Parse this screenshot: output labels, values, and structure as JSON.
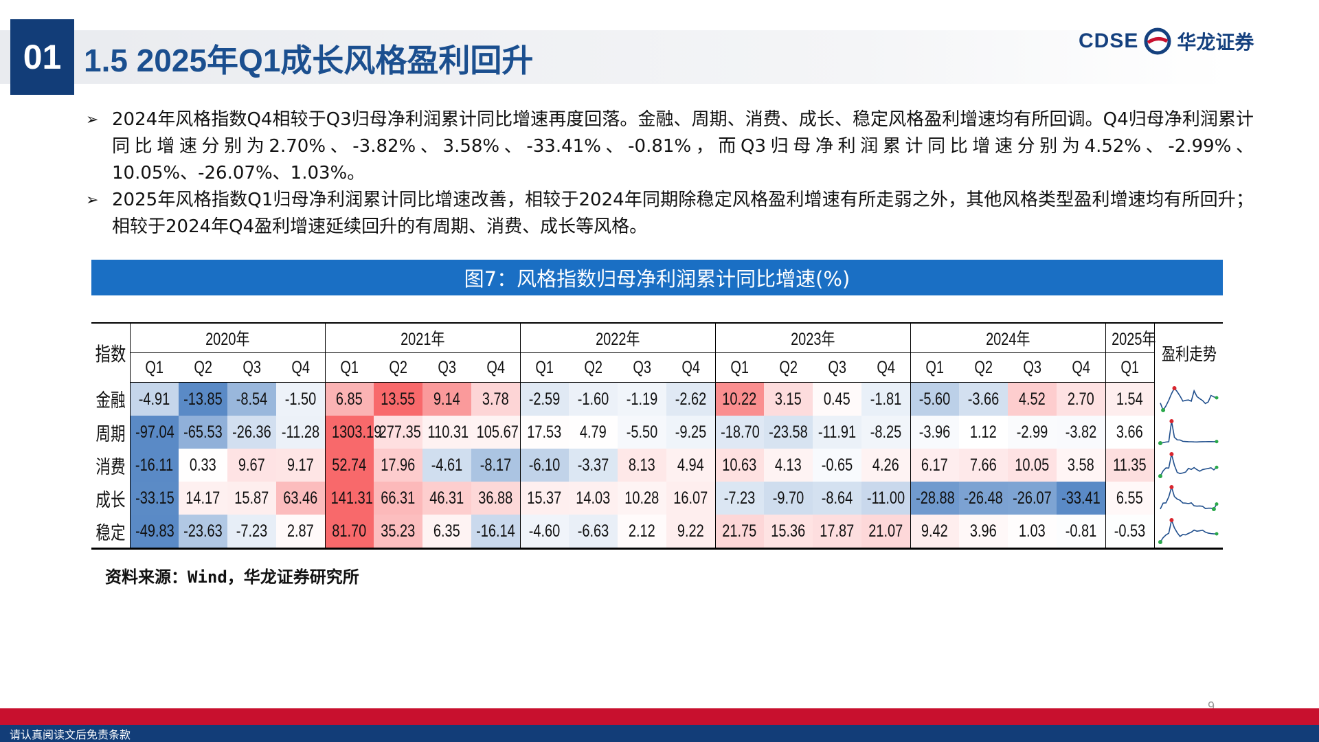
{
  "header": {
    "number": "01",
    "title": "1.5 2025年Q1成长风格盈利回升",
    "logo_en": "CDSE",
    "logo_cn": "华龙证券"
  },
  "bullets": [
    "2024年风格指数Q4相较于Q3归母净利润累计同比增速再度回落。金融、周期、消费、成长、稳定风格盈利增速均有所回调。Q4归母净利润累计同比增速分别为2.70%、-3.82%、3.58%、-33.41%、-0.81%，而Q3归母净利润累计同比增速分别为4.52%、-2.99%、10.05%、-26.07%、1.03%。",
    "2025年风格指数Q1归母净利润累计同比增速改善，相较于2024年同期除稳定风格盈利增速有所走弱之外，其他风格类型盈利增速均有所回升；相较于2024年Q4盈利增速延续回升的有周期、消费、成长等风格。"
  ],
  "figure": {
    "title": "图7：风格指数归母净利润累计同比增速(%)",
    "table": {
      "corner": "指数",
      "trend_header": "盈利走势",
      "years": [
        {
          "year": "2020年",
          "quarters": [
            "Q1",
            "Q2",
            "Q3",
            "Q4"
          ]
        },
        {
          "year": "2021年",
          "quarters": [
            "Q1",
            "Q2",
            "Q3",
            "Q4"
          ]
        },
        {
          "year": "2022年",
          "quarters": [
            "Q1",
            "Q2",
            "Q3",
            "Q4"
          ]
        },
        {
          "year": "2023年",
          "quarters": [
            "Q1",
            "Q2",
            "Q3",
            "Q4"
          ]
        },
        {
          "year": "2024年",
          "quarters": [
            "Q1",
            "Q2",
            "Q3",
            "Q4"
          ]
        },
        {
          "year": "2025年",
          "quarters": [
            "Q1"
          ]
        }
      ],
      "rows": [
        {
          "name": "金融",
          "values": [
            "-4.91",
            "-13.85",
            "-8.54",
            "-1.50",
            "6.85",
            "13.55",
            "9.14",
            "3.78",
            "-2.59",
            "-1.60",
            "-1.19",
            "-2.62",
            "10.22",
            "3.15",
            "0.45",
            "-1.81",
            "-5.60",
            "-3.66",
            "4.52",
            "2.70",
            "1.54"
          ]
        },
        {
          "name": "周期",
          "values": [
            "-97.04",
            "-65.53",
            "-26.36",
            "-11.28",
            "1303.19",
            "277.35",
            "110.31",
            "105.67",
            "17.53",
            "4.79",
            "-5.50",
            "-9.25",
            "-18.70",
            "-23.58",
            "-11.91",
            "-8.25",
            "-3.96",
            "1.12",
            "-2.99",
            "-3.82",
            "3.66"
          ]
        },
        {
          "name": "消费",
          "values": [
            "-16.11",
            "0.33",
            "9.67",
            "9.17",
            "52.74",
            "17.96",
            "-4.61",
            "-8.17",
            "-6.10",
            "-3.37",
            "8.13",
            "4.94",
            "10.63",
            "4.13",
            "-0.65",
            "4.26",
            "6.17",
            "7.66",
            "10.05",
            "3.58",
            "11.35"
          ]
        },
        {
          "name": "成长",
          "values": [
            "-33.15",
            "14.17",
            "15.87",
            "63.46",
            "141.31",
            "66.31",
            "46.31",
            "36.88",
            "15.37",
            "14.03",
            "10.28",
            "16.07",
            "-7.23",
            "-9.70",
            "-8.64",
            "-11.00",
            "-28.88",
            "-26.48",
            "-26.07",
            "-33.41",
            "6.55"
          ]
        },
        {
          "name": "稳定",
          "values": [
            "-49.83",
            "-23.63",
            "-7.23",
            "2.87",
            "81.70",
            "35.23",
            "6.35",
            "-16.14",
            "-4.60",
            "-6.63",
            "2.12",
            "9.22",
            "21.75",
            "15.36",
            "17.87",
            "21.07",
            "9.42",
            "3.96",
            "1.03",
            "-0.81",
            "-0.53"
          ]
        }
      ]
    },
    "source": "资料来源：Wind，华龙证券研究所"
  },
  "page_number": "9",
  "footer": "请认真阅读文后免责条款"
}
